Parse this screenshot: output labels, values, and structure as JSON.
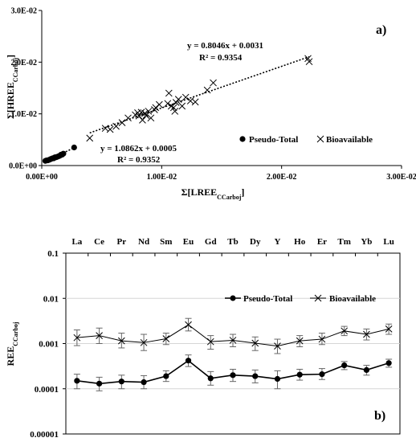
{
  "chart_data": [
    {
      "type": "scatter",
      "panel_label": "a)",
      "xlabel_main": "Σ[LREE",
      "xlabel_sub": "CCarboj",
      "xlabel_end": "]",
      "ylabel_main": "Σ[HREE",
      "ylabel_sub": "CCarboj",
      "ylabel_end": "]",
      "xlim": [
        0,
        0.03
      ],
      "ylim": [
        0,
        0.03
      ],
      "xticks": [
        0,
        0.01,
        0.02,
        0.03
      ],
      "xtick_labels": [
        "0.00E+00",
        "1.00E-02",
        "2.00E-02",
        "3.00E-02"
      ],
      "yticks": [
        0,
        0.01,
        0.02,
        0.03
      ],
      "ytick_labels": [
        "0.0E+00",
        "1.0E-02",
        "2.0E-02",
        "3.0E-02"
      ],
      "legend_position": "right",
      "series": [
        {
          "name": "Pseudo-Total",
          "marker": "circle",
          "x": [
            0.0003,
            0.0004,
            0.0005,
            0.0006,
            0.0007,
            0.0008,
            0.0009,
            0.001,
            0.0011,
            0.0012,
            0.0013,
            0.0014,
            0.0015,
            0.0016,
            0.0017,
            0.0018,
            0.0027
          ],
          "y": [
            0.0009,
            0.001,
            0.001,
            0.0011,
            0.0012,
            0.0013,
            0.0014,
            0.0014,
            0.0016,
            0.0016,
            0.0017,
            0.0018,
            0.0019,
            0.0021,
            0.0021,
            0.0023,
            0.0035
          ],
          "fit_equation": "y = 1.0862x + 0.0005",
          "r2_label": "R² = 0.9352",
          "fit": {
            "slope": 1.0862,
            "intercept": 0.0005
          }
        },
        {
          "name": "Bioavailable",
          "marker": "x",
          "x": [
            0.004,
            0.0053,
            0.0057,
            0.0062,
            0.0067,
            0.0072,
            0.0078,
            0.008,
            0.0081,
            0.0083,
            0.0084,
            0.0086,
            0.0087,
            0.0089,
            0.0091,
            0.0094,
            0.0095,
            0.0098,
            0.0105,
            0.0106,
            0.0108,
            0.011,
            0.0111,
            0.0112,
            0.0114,
            0.0117,
            0.012,
            0.0124,
            0.0128,
            0.0138,
            0.0143,
            0.0222,
            0.0223
          ],
          "y": [
            0.0053,
            0.0072,
            0.007,
            0.0076,
            0.0083,
            0.0092,
            0.0098,
            0.0102,
            0.0096,
            0.0103,
            0.0088,
            0.0101,
            0.0097,
            0.0105,
            0.0092,
            0.0108,
            0.0112,
            0.0118,
            0.012,
            0.014,
            0.0115,
            0.0112,
            0.0105,
            0.0122,
            0.0128,
            0.0115,
            0.0132,
            0.0125,
            0.0123,
            0.0146,
            0.016,
            0.0207,
            0.0201
          ],
          "fit_equation": "y = 0.8046x + 0.0031",
          "r2_label": "R² = 0.9354",
          "fit": {
            "slope": 0.8046,
            "intercept": 0.0031
          }
        }
      ]
    },
    {
      "type": "line",
      "panel_label": "b)",
      "ylabel_main": "REE",
      "ylabel_sub": "CCarboj",
      "log_y": true,
      "ylim": [
        1e-05,
        0.1
      ],
      "yticks": [
        1e-05,
        0.0001,
        0.001,
        0.01,
        0.1
      ],
      "ytick_labels": [
        "0.00001",
        "0.0001",
        "0.001",
        "0.01",
        "0.1"
      ],
      "categories": [
        "La",
        "Ce",
        "Pr",
        "Nd",
        "Sm",
        "Eu",
        "Gd",
        "Tb",
        "Dy",
        "Y",
        "Ho",
        "Er",
        "Tm",
        "Yb",
        "Lu"
      ],
      "legend_position": "upper right",
      "series": [
        {
          "name": "Pseudo-Total",
          "marker": "circle",
          "values": [
            0.00015,
            0.00013,
            0.000145,
            0.00014,
            0.00019,
            0.00042,
            0.00017,
            0.0002,
            0.00019,
            0.000165,
            0.000205,
            0.00021,
            0.00033,
            0.00026,
            0.00037
          ],
          "err_low": [
            0.0001,
            9e-05,
            0.0001,
            0.0001,
            0.000145,
            0.00031,
            0.00012,
            0.000145,
            0.000135,
            0.0001,
            0.000155,
            0.00016,
            0.000265,
            0.0002,
            0.0003
          ],
          "err_high": [
            0.00021,
            0.00018,
            0.0002,
            0.000195,
            0.00025,
            0.00056,
            0.00024,
            0.00027,
            0.00026,
            0.00025,
            0.00027,
            0.00028,
            0.0004,
            0.00033,
            0.00045
          ]
        },
        {
          "name": "Bioavailable",
          "marker": "x",
          "values": [
            0.00135,
            0.0015,
            0.00115,
            0.00105,
            0.00128,
            0.0026,
            0.0011,
            0.00118,
            0.00102,
            0.00088,
            0.00115,
            0.00125,
            0.0019,
            0.0016,
            0.0021
          ],
          "err_low": [
            0.0009,
            0.001,
            0.0008,
            0.0007,
            0.00095,
            0.0019,
            0.00075,
            0.00085,
            0.0007,
            0.0006,
            0.00085,
            0.00095,
            0.0015,
            0.0012,
            0.0016
          ],
          "err_high": [
            0.002,
            0.0022,
            0.0017,
            0.0016,
            0.0017,
            0.0036,
            0.0015,
            0.0016,
            0.0014,
            0.00125,
            0.0015,
            0.0017,
            0.0024,
            0.0021,
            0.0027
          ]
        }
      ]
    }
  ]
}
